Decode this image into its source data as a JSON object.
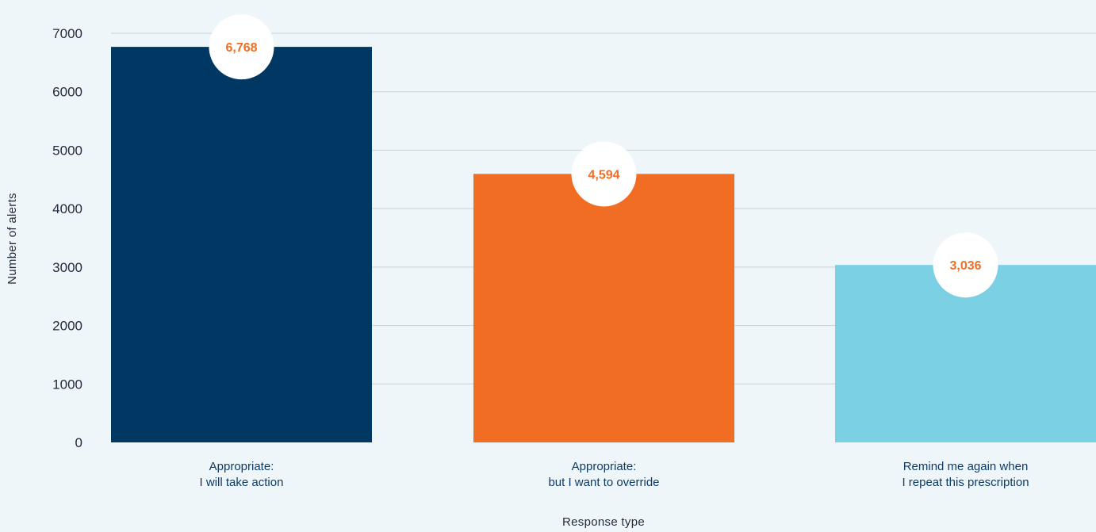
{
  "chart_data": {
    "type": "bar",
    "categories": [
      [
        "Appropriate:",
        "I will take action"
      ],
      [
        "Appropriate:",
        "but I want to override"
      ],
      [
        "Remind me again when",
        "I repeat this prescription"
      ]
    ],
    "values": [
      6768,
      4594,
      3036
    ],
    "value_labels": [
      "6,768",
      "4,594",
      "3,036"
    ],
    "colors": [
      "#003863",
      "#f26d24",
      "#7bd0e4"
    ],
    "xlabel": "Response type",
    "ylabel": "Number of alerts",
    "ylim": [
      0,
      7000
    ],
    "yticks": [
      0,
      1000,
      2000,
      3000,
      4000,
      5000,
      6000,
      7000
    ],
    "grid": true,
    "background": "#eef6fa",
    "gridline_color": "#c5d3dc",
    "value_label_color": "#f26d24"
  }
}
